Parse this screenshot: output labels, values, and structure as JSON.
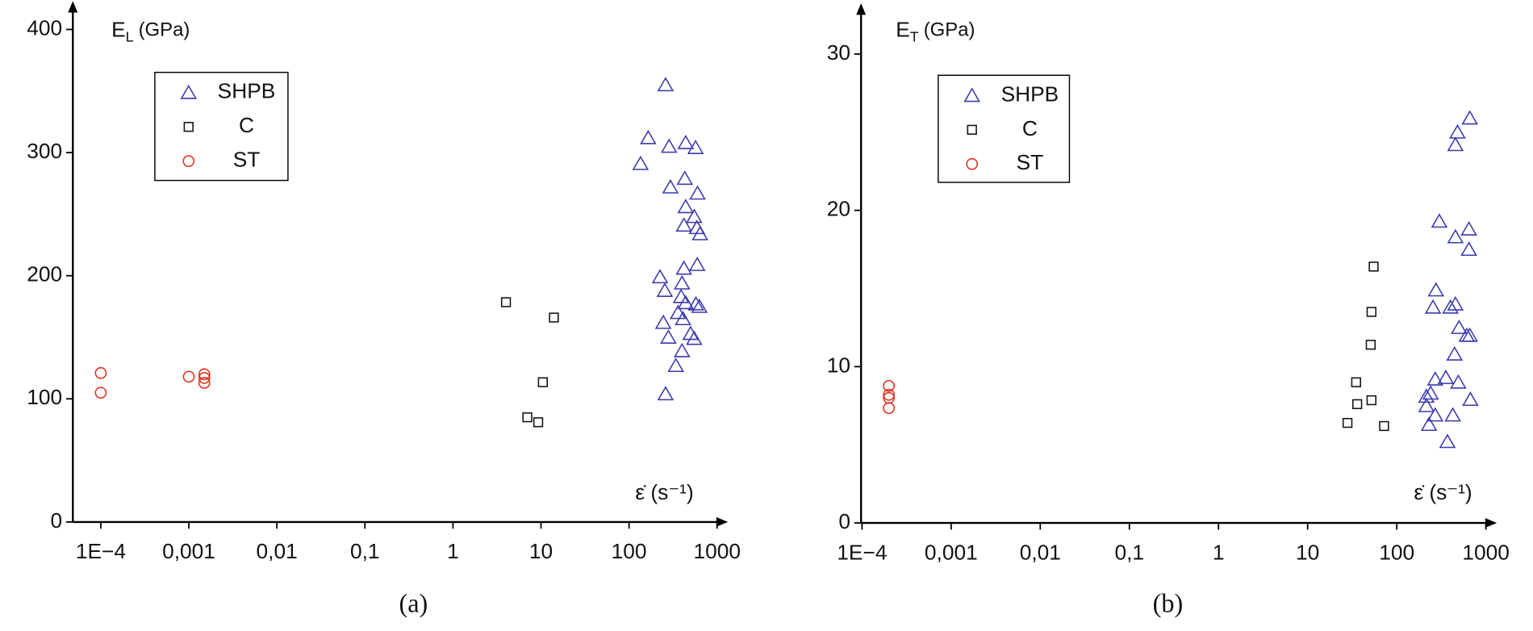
{
  "chart_data": [
    {
      "type": "scatter",
      "caption": "(a)",
      "xscale": "log",
      "legend": "upper left",
      "y_label": {
        "symbol": "E",
        "subscript": "L",
        "unit": "(GPa)"
      },
      "x_label": "ε̇ (s⁻¹)",
      "xlim": [
        5e-05,
        1200
      ],
      "ylim": [
        0,
        420
      ],
      "xticks": [
        {
          "value": 0.0001,
          "label": "1E−4"
        },
        {
          "value": 0.001,
          "label": "0,001"
        },
        {
          "value": 0.01,
          "label": "0,01"
        },
        {
          "value": 0.1,
          "label": "0,1"
        },
        1,
        10,
        100,
        1000
      ],
      "yticks": [
        0,
        100,
        200,
        300,
        400
      ],
      "series": [
        {
          "name": "SHPB",
          "color": "#3a3aae",
          "marker": "triangle",
          "x": [
            260,
            165,
            135,
            285,
            440,
            570,
            295,
            430,
            600,
            440,
            550,
            420,
            590,
            640,
            225,
            595,
            420,
            255,
            400,
            390,
            440,
            575,
            630,
            360,
            410,
            245,
            500,
            280,
            550,
            400,
            340,
            260
          ],
          "values": [
            355,
            312,
            291,
            305,
            308,
            304,
            272,
            279,
            267,
            256,
            248,
            241,
            239,
            234,
            199,
            209,
            206,
            188,
            194,
            183,
            178,
            177,
            175,
            170,
            165,
            162,
            153,
            150,
            149,
            139,
            127,
            104
          ]
        },
        {
          "name": "C",
          "color": "#111111",
          "marker": "square",
          "x": [
            4.0,
            14,
            10.5,
            7,
            9.3
          ],
          "values": [
            178.5,
            166,
            113.5,
            85,
            81
          ]
        },
        {
          "name": "ST",
          "color": "#e2301e",
          "marker": "circle",
          "x": [
            0.0001,
            0.0001,
            0.001,
            0.0015,
            0.0015,
            0.0015
          ],
          "values": [
            121,
            105,
            118,
            120,
            117,
            113
          ]
        }
      ]
    },
    {
      "type": "scatter",
      "caption": "(b)",
      "xscale": "log",
      "legend": "upper left",
      "y_label": {
        "symbol": "E",
        "subscript": "T",
        "unit": "(GPa)"
      },
      "x_label": "ε̇ (s⁻¹)",
      "xlim": [
        0.0001,
        1200
      ],
      "ylim": [
        0,
        33
      ],
      "xticks": [
        {
          "value": 0.0001,
          "label": "1E−4"
        },
        {
          "value": 0.001,
          "label": "0,001"
        },
        {
          "value": 0.01,
          "label": "0,01"
        },
        {
          "value": 0.1,
          "label": "0,1"
        },
        1,
        10,
        100,
        1000
      ],
      "yticks": [
        0,
        10,
        20,
        30
      ],
      "series": [
        {
          "name": "SHPB",
          "color": "#3a3aae",
          "marker": "triangle",
          "x": [
            660,
            480,
            455,
            300,
            645,
            455,
            645,
            275,
            255,
            455,
            400,
            500,
            610,
            660,
            445,
            270,
            355,
            490,
            240,
            215,
            670,
            215,
            270,
            425,
            230,
            370
          ],
          "values": [
            25.9,
            25.0,
            24.2,
            19.3,
            18.8,
            18.3,
            17.5,
            14.9,
            13.8,
            14.0,
            13.8,
            12.5,
            12.0,
            12.0,
            10.8,
            9.2,
            9.3,
            9.0,
            8.3,
            8.1,
            7.9,
            7.5,
            6.9,
            6.9,
            6.3,
            5.2
          ]
        },
        {
          "name": "C",
          "color": "#111111",
          "marker": "square",
          "x": [
            28,
            35,
            36,
            52,
            51,
            52,
            55,
            72
          ],
          "values": [
            6.4,
            9.0,
            7.6,
            7.85,
            11.4,
            13.5,
            16.4,
            6.2
          ]
        },
        {
          "name": "ST",
          "color": "#e2301e",
          "marker": "circle",
          "x": [
            0.0002,
            0.0002,
            0.0002,
            0.0002
          ],
          "values": [
            8.77,
            8.2,
            8.0,
            7.35
          ]
        }
      ]
    }
  ]
}
